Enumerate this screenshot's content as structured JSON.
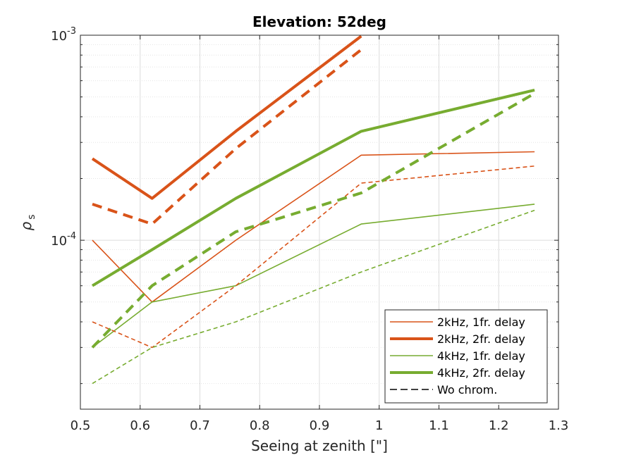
{
  "chart_data": {
    "type": "line",
    "title": "Elevation: 52deg",
    "xlabel": "Seeing at zenith [\"]",
    "ylabel": "ρ",
    "ylabel_subscript": "s",
    "xlim": [
      0.5,
      1.3
    ],
    "ylim": [
      1.5e-05,
      0.001
    ],
    "yscale": "log",
    "grid": true,
    "legend_position": "bottom-right",
    "x": [
      0.52,
      0.62,
      0.76,
      0.97,
      1.26
    ],
    "xticks": [
      0.5,
      0.6,
      0.7,
      0.8,
      0.9,
      1,
      1.1,
      1.2,
      1.3
    ],
    "xtick_labels": [
      "0.5",
      "0.6",
      "0.7",
      "0.8",
      "0.9",
      "1",
      "1.1",
      "1.2",
      "1.3"
    ],
    "yticks": [
      {
        "value": 0.0001,
        "base": "10",
        "exp": "-4"
      },
      {
        "value": 0.001,
        "base": "10",
        "exp": "-3"
      }
    ],
    "series": [
      {
        "name": "2kHz, 1fr. delay",
        "color": "#D95319",
        "style": "solid",
        "weight": "thin",
        "in_legend": true,
        "values": [
          0.0001,
          5e-05,
          0.0001,
          0.00026,
          0.00027
        ]
      },
      {
        "name": "2kHz, 2fr. delay",
        "color": "#D95319",
        "style": "solid",
        "weight": "thick",
        "in_legend": true,
        "values": [
          0.00025,
          0.00016,
          0.00034,
          0.00099,
          null
        ]
      },
      {
        "name": "4kHz, 1fr. delay",
        "color": "#77AC30",
        "style": "solid",
        "weight": "thin",
        "in_legend": true,
        "values": [
          3e-05,
          5e-05,
          6e-05,
          0.00012,
          0.00015
        ]
      },
      {
        "name": "4kHz, 2fr. delay",
        "color": "#77AC30",
        "style": "solid",
        "weight": "thick",
        "in_legend": true,
        "values": [
          6e-05,
          9e-05,
          0.00016,
          0.00034,
          0.00054
        ]
      },
      {
        "name": "2kHz, 1fr. delay (wo chrom.)",
        "color": "#D95319",
        "style": "dashed",
        "weight": "thin",
        "in_legend": false,
        "values": [
          4e-05,
          3e-05,
          6e-05,
          0.00019,
          0.00023
        ]
      },
      {
        "name": "2kHz, 2fr. delay (wo chrom.)",
        "color": "#D95319",
        "style": "dashed",
        "weight": "thick",
        "in_legend": false,
        "values": [
          0.00015,
          0.00012,
          0.00028,
          0.00085,
          null
        ]
      },
      {
        "name": "4kHz, 1fr. delay (wo chrom.)",
        "color": "#77AC30",
        "style": "dashed",
        "weight": "thin",
        "in_legend": false,
        "values": [
          2e-05,
          3e-05,
          4e-05,
          7e-05,
          0.00014
        ]
      },
      {
        "name": "4kHz, 2fr. delay (wo chrom.)",
        "color": "#77AC30",
        "style": "dashed",
        "weight": "thick",
        "in_legend": false,
        "values": [
          3e-05,
          6e-05,
          0.00011,
          0.00017,
          0.00052
        ]
      }
    ],
    "legend": [
      {
        "label": "2kHz, 1fr. delay",
        "color": "#D95319",
        "style": "solid",
        "weight": "thin"
      },
      {
        "label": "2kHz, 2fr. delay",
        "color": "#D95319",
        "style": "solid",
        "weight": "thick"
      },
      {
        "label": "4kHz, 1fr. delay",
        "color": "#77AC30",
        "style": "solid",
        "weight": "thin"
      },
      {
        "label": "4kHz, 2fr. delay",
        "color": "#77AC30",
        "style": "solid",
        "weight": "thick"
      },
      {
        "label": "Wo chrom.",
        "color": "#000000",
        "style": "dashed",
        "weight": "thin"
      }
    ]
  }
}
